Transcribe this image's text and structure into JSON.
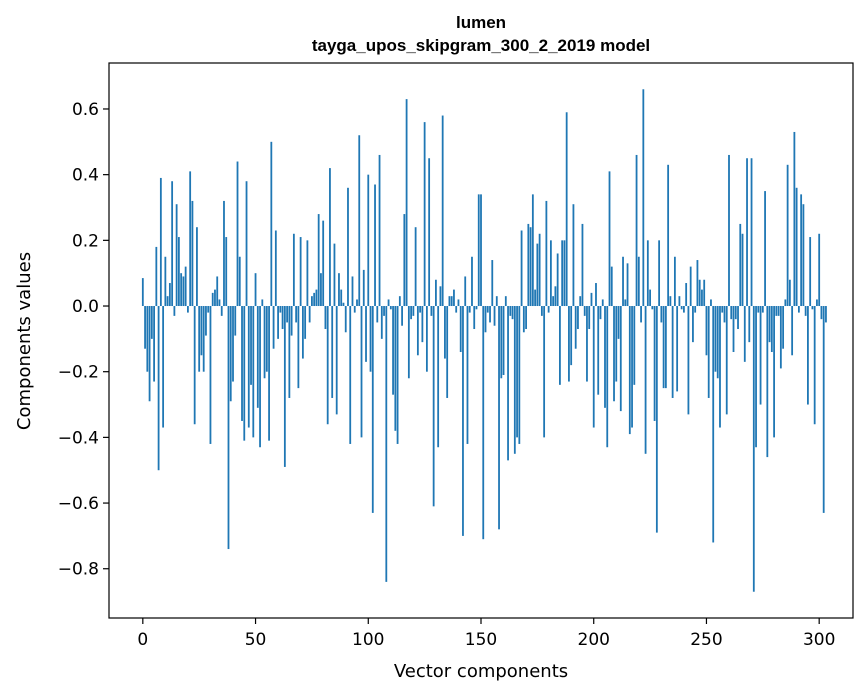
{
  "chart_data": {
    "type": "bar",
    "title": "lumen",
    "subtitle": "tayga_upos_skipgram_300_2_2019 model",
    "xlabel": "Vector components",
    "ylabel": "Components values",
    "xlim": [
      -15,
      315
    ],
    "ylim": [
      -0.95,
      0.74
    ],
    "xticks": [
      0,
      50,
      100,
      150,
      200,
      250,
      300
    ],
    "xtick_labels": [
      "0",
      "50",
      "100",
      "150",
      "200",
      "250",
      "300"
    ],
    "yticks": [
      -0.8,
      -0.6,
      -0.4,
      -0.2,
      0.0,
      0.2,
      0.4,
      0.6
    ],
    "ytick_labels": [
      "−0.8",
      "−0.6",
      "−0.4",
      "−0.2",
      "0.0",
      "0.2",
      "0.4",
      "0.6"
    ],
    "grid": false,
    "color": "#1f77b4",
    "values": [
      0.085,
      -0.13,
      -0.2,
      -0.29,
      -0.1,
      -0.23,
      0.18,
      -0.5,
      0.39,
      -0.37,
      0.15,
      0.03,
      0.07,
      0.38,
      -0.03,
      0.31,
      0.21,
      0.1,
      0.09,
      0.12,
      -0.02,
      0.41,
      0.32,
      -0.36,
      0.24,
      -0.2,
      -0.15,
      -0.2,
      -0.09,
      -0.02,
      -0.42,
      0.04,
      0.05,
      0.09,
      0.02,
      -0.03,
      0.32,
      0.21,
      -0.74,
      -0.29,
      -0.23,
      -0.09,
      0.44,
      0.15,
      -0.35,
      -0.41,
      0.38,
      -0.37,
      -0.24,
      -0.4,
      0.1,
      -0.31,
      -0.43,
      0.02,
      -0.22,
      -0.2,
      -0.41,
      0.5,
      -0.13,
      0.23,
      -0.1,
      -0.02,
      -0.07,
      -0.49,
      -0.05,
      -0.28,
      -0.09,
      0.22,
      -0.05,
      -0.25,
      0.21,
      -0.16,
      -0.1,
      0.2,
      -0.05,
      0.03,
      0.04,
      0.05,
      0.28,
      0.1,
      0.26,
      -0.07,
      -0.36,
      0.42,
      -0.28,
      0.19,
      -0.33,
      0.1,
      0.05,
      0.01,
      -0.08,
      0.36,
      -0.42,
      0.09,
      -0.02,
      0.02,
      0.52,
      -0.4,
      0.11,
      -0.17,
      0.4,
      -0.2,
      -0.63,
      0.37,
      -0.05,
      0.46,
      -0.1,
      -0.03,
      -0.84,
      0.02,
      -0.01,
      -0.27,
      -0.38,
      -0.42,
      0.03,
      -0.06,
      0.28,
      0.63,
      -0.22,
      -0.04,
      -0.03,
      0.24,
      -0.15,
      -0.02,
      -0.11,
      0.56,
      -0.2,
      0.45,
      -0.03,
      -0.61,
      0.08,
      -0.43,
      0.06,
      0.58,
      -0.16,
      -0.28,
      0.03,
      0.03,
      0.05,
      -0.02,
      0.02,
      -0.14,
      -0.7,
      0.09,
      -0.42,
      -0.02,
      0.15,
      -0.07,
      -0.01,
      0.34,
      0.34,
      -0.71,
      -0.08,
      -0.02,
      -0.05,
      0.14,
      -0.06,
      0.03,
      -0.68,
      -0.22,
      -0.21,
      0.03,
      -0.47,
      -0.03,
      -0.04,
      -0.45,
      -0.4,
      -0.42,
      0.23,
      -0.08,
      -0.07,
      0.25,
      0.24,
      0.34,
      0.05,
      0.19,
      0.22,
      -0.03,
      -0.4,
      0.32,
      -0.02,
      0.2,
      0.03,
      0.06,
      0.16,
      -0.24,
      0.2,
      0.2,
      0.59,
      -0.23,
      -0.18,
      0.31,
      -0.13,
      -0.07,
      0.03,
      0.25,
      -0.03,
      -0.23,
      -0.07,
      0.04,
      -0.37,
      0.07,
      -0.27,
      -0.04,
      0.02,
      -0.31,
      -0.43,
      0.41,
      0.12,
      -0.29,
      -0.23,
      -0.1,
      -0.32,
      0.15,
      0.02,
      0.13,
      -0.39,
      -0.37,
      -0.24,
      0.46,
      0.15,
      -0.05,
      0.66,
      -0.45,
      0.2,
      0.05,
      -0.01,
      -0.35,
      -0.69,
      0.2,
      -0.05,
      -0.25,
      -0.25,
      0.43,
      0.03,
      -0.28,
      0.15,
      -0.26,
      0.03,
      -0.01,
      -0.02,
      0.07,
      -0.33,
      0.12,
      -0.11,
      -0.02,
      0.14,
      0.08,
      0.05,
      0.08,
      -0.15,
      -0.28,
      0.02,
      -0.72,
      -0.2,
      -0.22,
      -0.37,
      -0.02,
      -0.05,
      -0.33,
      0.46,
      -0.04,
      -0.14,
      -0.04,
      -0.07,
      0.25,
      0.22,
      -0.17,
      0.45,
      -0.11,
      0.45,
      -0.87,
      -0.43,
      -0.02,
      -0.3,
      -0.02,
      0.35,
      -0.46,
      -0.11,
      -0.14,
      -0.4,
      -0.03,
      -0.03,
      -0.19,
      -0.13,
      0.02,
      0.43,
      0.08,
      -0.15,
      0.53,
      0.36,
      -0.02,
      0.34,
      0.31,
      -0.03,
      -0.3,
      0.21,
      -0.01,
      -0.36,
      0.02,
      0.22,
      -0.04,
      -0.63,
      -0.05
    ]
  }
}
